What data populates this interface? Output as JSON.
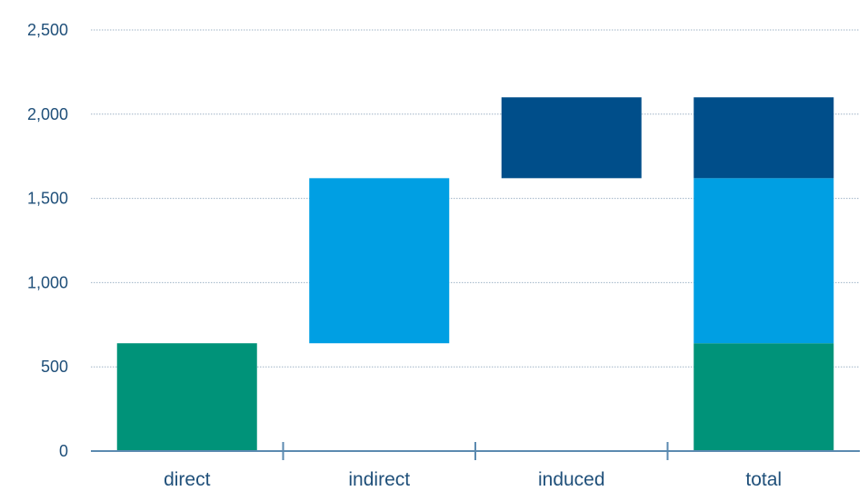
{
  "chart_data": {
    "type": "bar",
    "subtype": "waterfall",
    "title": "",
    "xlabel": "",
    "ylabel": "",
    "ylim": [
      0,
      2500
    ],
    "yticks": [
      0,
      500,
      1000,
      1500,
      2000,
      2500
    ],
    "ytick_labels": [
      "0",
      "500",
      "1,000",
      "1,500",
      "2,000",
      "2,500"
    ],
    "categories": [
      "direct",
      "indirect",
      "induced",
      "total"
    ],
    "grid": true,
    "legend": "none",
    "series": [
      {
        "color": "#009379",
        "values": [
          640,
          0,
          0,
          640
        ],
        "base": [
          0,
          0,
          0,
          0
        ]
      },
      {
        "color": "#009fe3",
        "values": [
          0,
          980,
          0,
          980
        ],
        "base": [
          0,
          640,
          0,
          640
        ]
      },
      {
        "color": "#004e8a",
        "values": [
          0,
          0,
          480,
          480
        ],
        "base": [
          0,
          0,
          1620,
          1620
        ]
      }
    ],
    "colors": {
      "direct": "#009379",
      "indirect": "#009fe3",
      "induced": "#004e8a",
      "axis": "#5b8ab0",
      "text": "#20507a"
    }
  }
}
